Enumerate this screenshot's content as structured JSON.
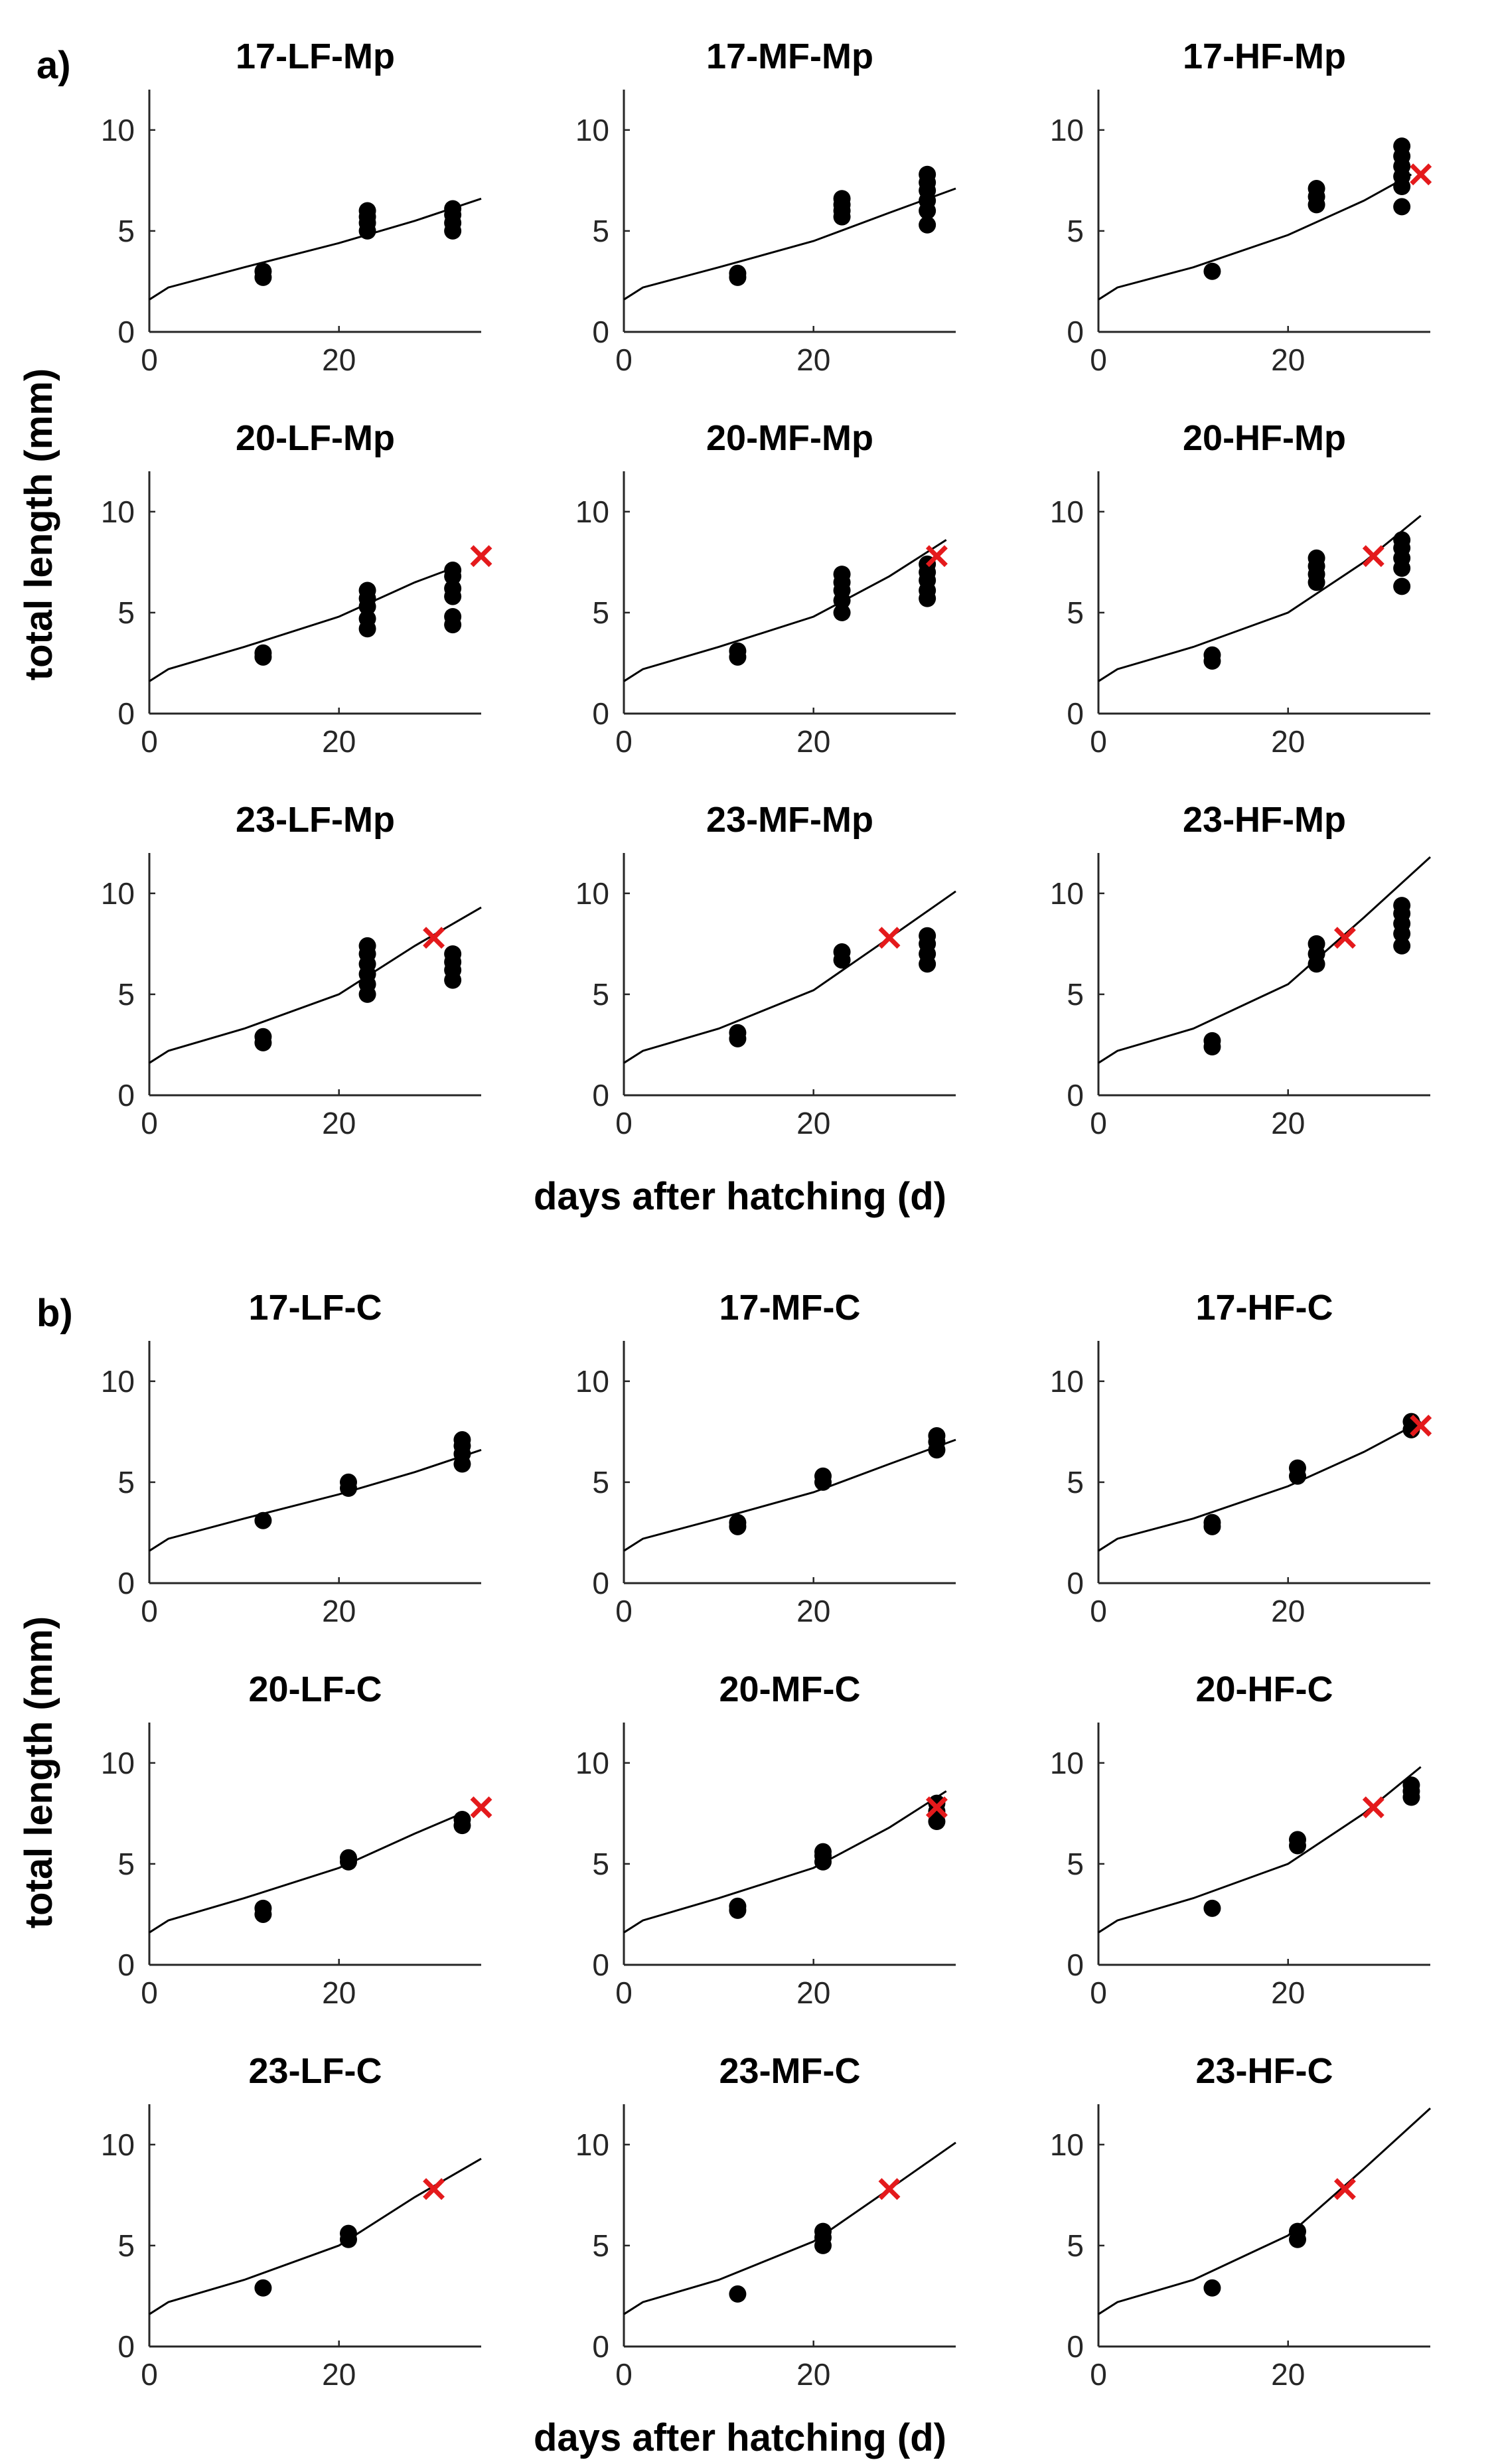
{
  "figure": {
    "panel_labels": [
      "a)",
      "b)"
    ],
    "ylabel": "total length (mm)",
    "xlabel": "days after hatching (d)",
    "colors": {
      "points": "#000000",
      "model": "#000000",
      "marker_x": "#e41a1c",
      "axes": "#262626"
    }
  },
  "chart_data": [
    {
      "type": "scatter",
      "group": "a",
      "title": "17-LF-Mp",
      "xlim": [
        0,
        35
      ],
      "ylim": [
        0,
        12
      ],
      "xticks": [
        0,
        20
      ],
      "yticks": [
        0,
        5,
        10
      ],
      "points": [
        [
          12,
          2.7
        ],
        [
          12,
          3.0
        ],
        [
          23,
          5.0
        ],
        [
          23,
          5.4
        ],
        [
          23,
          5.7
        ],
        [
          23,
          6.0
        ],
        [
          32,
          5.0
        ],
        [
          32,
          5.4
        ],
        [
          32,
          5.8
        ],
        [
          32,
          6.1
        ]
      ],
      "curve": [
        [
          0,
          1.6
        ],
        [
          2,
          2.2
        ],
        [
          10,
          3.2
        ],
        [
          20,
          4.4
        ],
        [
          28,
          5.5
        ],
        [
          35,
          6.6
        ]
      ],
      "x_marker": null
    },
    {
      "type": "scatter",
      "group": "a",
      "title": "17-MF-Mp",
      "xlim": [
        0,
        35
      ],
      "ylim": [
        0,
        12
      ],
      "xticks": [
        0,
        20
      ],
      "yticks": [
        0,
        5,
        10
      ],
      "points": [
        [
          12,
          2.7
        ],
        [
          12,
          2.9
        ],
        [
          23,
          5.7
        ],
        [
          23,
          6.0
        ],
        [
          23,
          6.3
        ],
        [
          23,
          6.6
        ],
        [
          32,
          5.3
        ],
        [
          32,
          6.0
        ],
        [
          32,
          6.5
        ],
        [
          32,
          7.0
        ],
        [
          32,
          7.4
        ],
        [
          32,
          7.8
        ]
      ],
      "curve": [
        [
          0,
          1.6
        ],
        [
          2,
          2.2
        ],
        [
          10,
          3.2
        ],
        [
          20,
          4.5
        ],
        [
          28,
          5.9
        ],
        [
          35,
          7.1
        ]
      ],
      "x_marker": null
    },
    {
      "type": "scatter",
      "group": "a",
      "title": "17-HF-Mp",
      "xlim": [
        0,
        35
      ],
      "ylim": [
        0,
        12
      ],
      "xticks": [
        0,
        20
      ],
      "yticks": [
        0,
        5,
        10
      ],
      "points": [
        [
          12,
          3.0
        ],
        [
          23,
          6.3
        ],
        [
          23,
          6.7
        ],
        [
          23,
          7.1
        ],
        [
          32,
          6.2
        ],
        [
          32,
          7.2
        ],
        [
          32,
          7.7
        ],
        [
          32,
          8.2
        ],
        [
          32,
          8.7
        ],
        [
          32,
          9.2
        ]
      ],
      "curve": [
        [
          0,
          1.6
        ],
        [
          2,
          2.2
        ],
        [
          10,
          3.2
        ],
        [
          20,
          4.8
        ],
        [
          28,
          6.5
        ],
        [
          33,
          7.8
        ]
      ],
      "x_marker": [
        34,
        7.8
      ]
    },
    {
      "type": "scatter",
      "group": "a",
      "title": "20-LF-Mp",
      "xlim": [
        0,
        35
      ],
      "ylim": [
        0,
        12
      ],
      "xticks": [
        0,
        20
      ],
      "yticks": [
        0,
        5,
        10
      ],
      "points": [
        [
          12,
          2.8
        ],
        [
          12,
          3.0
        ],
        [
          23,
          4.2
        ],
        [
          23,
          4.7
        ],
        [
          23,
          5.3
        ],
        [
          23,
          5.7
        ],
        [
          23,
          6.1
        ],
        [
          32,
          4.4
        ],
        [
          32,
          4.8
        ],
        [
          32,
          5.8
        ],
        [
          32,
          6.2
        ],
        [
          32,
          6.8
        ],
        [
          32,
          7.1
        ]
      ],
      "curve": [
        [
          0,
          1.6
        ],
        [
          2,
          2.2
        ],
        [
          10,
          3.3
        ],
        [
          20,
          4.8
        ],
        [
          28,
          6.5
        ],
        [
          32,
          7.2
        ]
      ],
      "x_marker": [
        35,
        7.8
      ]
    },
    {
      "type": "scatter",
      "group": "a",
      "title": "20-MF-Mp",
      "xlim": [
        0,
        35
      ],
      "ylim": [
        0,
        12
      ],
      "xticks": [
        0,
        20
      ],
      "yticks": [
        0,
        5,
        10
      ],
      "points": [
        [
          12,
          2.8
        ],
        [
          12,
          3.1
        ],
        [
          23,
          5.0
        ],
        [
          23,
          5.6
        ],
        [
          23,
          6.1
        ],
        [
          23,
          6.5
        ],
        [
          23,
          6.9
        ],
        [
          32,
          5.7
        ],
        [
          32,
          6.1
        ],
        [
          32,
          6.6
        ],
        [
          32,
          7.0
        ],
        [
          32,
          7.4
        ]
      ],
      "curve": [
        [
          0,
          1.6
        ],
        [
          2,
          2.2
        ],
        [
          10,
          3.3
        ],
        [
          20,
          4.8
        ],
        [
          28,
          6.8
        ],
        [
          34,
          8.6
        ]
      ],
      "x_marker": [
        33,
        7.8
      ]
    },
    {
      "type": "scatter",
      "group": "a",
      "title": "20-HF-Mp",
      "xlim": [
        0,
        35
      ],
      "ylim": [
        0,
        12
      ],
      "xticks": [
        0,
        20
      ],
      "yticks": [
        0,
        5,
        10
      ],
      "points": [
        [
          12,
          2.6
        ],
        [
          12,
          2.9
        ],
        [
          23,
          6.5
        ],
        [
          23,
          6.9
        ],
        [
          23,
          7.3
        ],
        [
          23,
          7.7
        ],
        [
          32,
          6.3
        ],
        [
          32,
          7.2
        ],
        [
          32,
          7.7
        ],
        [
          32,
          8.2
        ],
        [
          32,
          8.6
        ]
      ],
      "curve": [
        [
          0,
          1.6
        ],
        [
          2,
          2.2
        ],
        [
          10,
          3.3
        ],
        [
          20,
          5.0
        ],
        [
          28,
          7.5
        ],
        [
          34,
          9.8
        ]
      ],
      "x_marker": [
        29,
        7.8
      ]
    },
    {
      "type": "scatter",
      "group": "a",
      "title": "23-LF-Mp",
      "xlim": [
        0,
        35
      ],
      "ylim": [
        0,
        12
      ],
      "xticks": [
        0,
        20
      ],
      "yticks": [
        0,
        5,
        10
      ],
      "points": [
        [
          12,
          2.6
        ],
        [
          12,
          2.9
        ],
        [
          23,
          5.0
        ],
        [
          23,
          5.5
        ],
        [
          23,
          6.0
        ],
        [
          23,
          6.5
        ],
        [
          23,
          7.0
        ],
        [
          23,
          7.4
        ],
        [
          32,
          5.7
        ],
        [
          32,
          6.2
        ],
        [
          32,
          6.6
        ],
        [
          32,
          7.0
        ]
      ],
      "curve": [
        [
          0,
          1.6
        ],
        [
          2,
          2.2
        ],
        [
          10,
          3.3
        ],
        [
          20,
          5.0
        ],
        [
          28,
          7.4
        ],
        [
          35,
          9.3
        ]
      ],
      "x_marker": [
        30,
        7.8
      ]
    },
    {
      "type": "scatter",
      "group": "a",
      "title": "23-MF-Mp",
      "xlim": [
        0,
        35
      ],
      "ylim": [
        0,
        12
      ],
      "xticks": [
        0,
        20
      ],
      "yticks": [
        0,
        5,
        10
      ],
      "points": [
        [
          12,
          2.8
        ],
        [
          12,
          3.1
        ],
        [
          23,
          6.7
        ],
        [
          23,
          7.1
        ],
        [
          32,
          6.5
        ],
        [
          32,
          7.0
        ],
        [
          32,
          7.5
        ],
        [
          32,
          7.9
        ]
      ],
      "curve": [
        [
          0,
          1.6
        ],
        [
          2,
          2.2
        ],
        [
          10,
          3.3
        ],
        [
          20,
          5.2
        ],
        [
          28,
          7.8
        ],
        [
          35,
          10.1
        ]
      ],
      "x_marker": [
        28,
        7.8
      ]
    },
    {
      "type": "scatter",
      "group": "a",
      "title": "23-HF-Mp",
      "xlim": [
        0,
        35
      ],
      "ylim": [
        0,
        12
      ],
      "xticks": [
        0,
        20
      ],
      "yticks": [
        0,
        5,
        10
      ],
      "points": [
        [
          12,
          2.4
        ],
        [
          12,
          2.7
        ],
        [
          23,
          6.5
        ],
        [
          23,
          7.0
        ],
        [
          23,
          7.5
        ],
        [
          32,
          7.4
        ],
        [
          32,
          8.0
        ],
        [
          32,
          8.5
        ],
        [
          32,
          9.0
        ],
        [
          32,
          9.4
        ]
      ],
      "curve": [
        [
          0,
          1.6
        ],
        [
          2,
          2.2
        ],
        [
          10,
          3.3
        ],
        [
          20,
          5.5
        ],
        [
          28,
          8.8
        ],
        [
          35,
          11.8
        ]
      ],
      "x_marker": [
        26,
        7.8
      ]
    },
    {
      "type": "scatter",
      "group": "b",
      "title": "17-LF-C",
      "xlim": [
        0,
        35
      ],
      "ylim": [
        0,
        12
      ],
      "xticks": [
        0,
        20
      ],
      "yticks": [
        0,
        5,
        10
      ],
      "points": [
        [
          12,
          3.1
        ],
        [
          21,
          4.7
        ],
        [
          21,
          5.0
        ],
        [
          33,
          5.9
        ],
        [
          33,
          6.4
        ],
        [
          33,
          6.8
        ],
        [
          33,
          7.1
        ]
      ],
      "curve": [
        [
          0,
          1.6
        ],
        [
          2,
          2.2
        ],
        [
          10,
          3.2
        ],
        [
          20,
          4.4
        ],
        [
          28,
          5.5
        ],
        [
          35,
          6.6
        ]
      ],
      "x_marker": null
    },
    {
      "type": "scatter",
      "group": "b",
      "title": "17-MF-C",
      "xlim": [
        0,
        35
      ],
      "ylim": [
        0,
        12
      ],
      "xticks": [
        0,
        20
      ],
      "yticks": [
        0,
        5,
        10
      ],
      "points": [
        [
          12,
          2.8
        ],
        [
          12,
          3.0
        ],
        [
          21,
          5.0
        ],
        [
          21,
          5.3
        ],
        [
          33,
          6.6
        ],
        [
          33,
          7.0
        ],
        [
          33,
          7.3
        ]
      ],
      "curve": [
        [
          0,
          1.6
        ],
        [
          2,
          2.2
        ],
        [
          10,
          3.2
        ],
        [
          20,
          4.5
        ],
        [
          28,
          5.9
        ],
        [
          35,
          7.1
        ]
      ],
      "x_marker": null
    },
    {
      "type": "scatter",
      "group": "b",
      "title": "17-HF-C",
      "xlim": [
        0,
        35
      ],
      "ylim": [
        0,
        12
      ],
      "xticks": [
        0,
        20
      ],
      "yticks": [
        0,
        5,
        10
      ],
      "points": [
        [
          12,
          2.8
        ],
        [
          12,
          3.0
        ],
        [
          21,
          5.3
        ],
        [
          21,
          5.7
        ],
        [
          33,
          7.6
        ],
        [
          33,
          8.0
        ]
      ],
      "curve": [
        [
          0,
          1.6
        ],
        [
          2,
          2.2
        ],
        [
          10,
          3.2
        ],
        [
          20,
          4.8
        ],
        [
          28,
          6.5
        ],
        [
          34,
          8.0
        ]
      ],
      "x_marker": [
        34,
        7.8
      ]
    },
    {
      "type": "scatter",
      "group": "b",
      "title": "20-LF-C",
      "xlim": [
        0,
        35
      ],
      "ylim": [
        0,
        12
      ],
      "xticks": [
        0,
        20
      ],
      "yticks": [
        0,
        5,
        10
      ],
      "points": [
        [
          12,
          2.5
        ],
        [
          12,
          2.8
        ],
        [
          21,
          5.1
        ],
        [
          21,
          5.3
        ],
        [
          33,
          6.9
        ],
        [
          33,
          7.2
        ]
      ],
      "curve": [
        [
          0,
          1.6
        ],
        [
          2,
          2.2
        ],
        [
          10,
          3.3
        ],
        [
          20,
          4.8
        ],
        [
          28,
          6.5
        ],
        [
          33,
          7.5
        ]
      ],
      "x_marker": [
        35,
        7.8
      ]
    },
    {
      "type": "scatter",
      "group": "b",
      "title": "20-MF-C",
      "xlim": [
        0,
        35
      ],
      "ylim": [
        0,
        12
      ],
      "xticks": [
        0,
        20
      ],
      "yticks": [
        0,
        5,
        10
      ],
      "points": [
        [
          12,
          2.7
        ],
        [
          12,
          2.9
        ],
        [
          21,
          5.1
        ],
        [
          21,
          5.4
        ],
        [
          21,
          5.6
        ],
        [
          33,
          7.1
        ],
        [
          33,
          7.6
        ],
        [
          33,
          8.0
        ]
      ],
      "curve": [
        [
          0,
          1.6
        ],
        [
          2,
          2.2
        ],
        [
          10,
          3.3
        ],
        [
          20,
          4.8
        ],
        [
          28,
          6.8
        ],
        [
          34,
          8.6
        ]
      ],
      "x_marker": [
        33,
        7.8
      ]
    },
    {
      "type": "scatter",
      "group": "b",
      "title": "20-HF-C",
      "xlim": [
        0,
        35
      ],
      "ylim": [
        0,
        12
      ],
      "xticks": [
        0,
        20
      ],
      "yticks": [
        0,
        5,
        10
      ],
      "points": [
        [
          12,
          2.8
        ],
        [
          21,
          5.9
        ],
        [
          21,
          6.2
        ],
        [
          33,
          8.3
        ],
        [
          33,
          8.6
        ],
        [
          33,
          8.9
        ]
      ],
      "curve": [
        [
          0,
          1.6
        ],
        [
          2,
          2.2
        ],
        [
          10,
          3.3
        ],
        [
          20,
          5.0
        ],
        [
          28,
          7.5
        ],
        [
          34,
          9.8
        ]
      ],
      "x_marker": [
        29,
        7.8
      ]
    },
    {
      "type": "scatter",
      "group": "b",
      "title": "23-LF-C",
      "xlim": [
        0,
        35
      ],
      "ylim": [
        0,
        12
      ],
      "xticks": [
        0,
        20
      ],
      "yticks": [
        0,
        5,
        10
      ],
      "points": [
        [
          12,
          2.9
        ],
        [
          21,
          5.3
        ],
        [
          21,
          5.6
        ]
      ],
      "curve": [
        [
          0,
          1.6
        ],
        [
          2,
          2.2
        ],
        [
          10,
          3.3
        ],
        [
          20,
          5.0
        ],
        [
          28,
          7.4
        ],
        [
          35,
          9.3
        ]
      ],
      "x_marker": [
        30,
        7.8
      ]
    },
    {
      "type": "scatter",
      "group": "b",
      "title": "23-MF-C",
      "xlim": [
        0,
        35
      ],
      "ylim": [
        0,
        12
      ],
      "xticks": [
        0,
        20
      ],
      "yticks": [
        0,
        5,
        10
      ],
      "points": [
        [
          12,
          2.6
        ],
        [
          21,
          5.0
        ],
        [
          21,
          5.4
        ],
        [
          21,
          5.7
        ]
      ],
      "curve": [
        [
          0,
          1.6
        ],
        [
          2,
          2.2
        ],
        [
          10,
          3.3
        ],
        [
          20,
          5.2
        ],
        [
          28,
          7.8
        ],
        [
          35,
          10.1
        ]
      ],
      "x_marker": [
        28,
        7.8
      ]
    },
    {
      "type": "scatter",
      "group": "b",
      "title": "23-HF-C",
      "xlim": [
        0,
        35
      ],
      "ylim": [
        0,
        12
      ],
      "xticks": [
        0,
        20
      ],
      "yticks": [
        0,
        5,
        10
      ],
      "points": [
        [
          12,
          2.9
        ],
        [
          21,
          5.3
        ],
        [
          21,
          5.7
        ]
      ],
      "curve": [
        [
          0,
          1.6
        ],
        [
          2,
          2.2
        ],
        [
          10,
          3.3
        ],
        [
          20,
          5.5
        ],
        [
          28,
          8.8
        ],
        [
          35,
          11.8
        ]
      ],
      "x_marker": [
        26,
        7.8
      ]
    }
  ]
}
